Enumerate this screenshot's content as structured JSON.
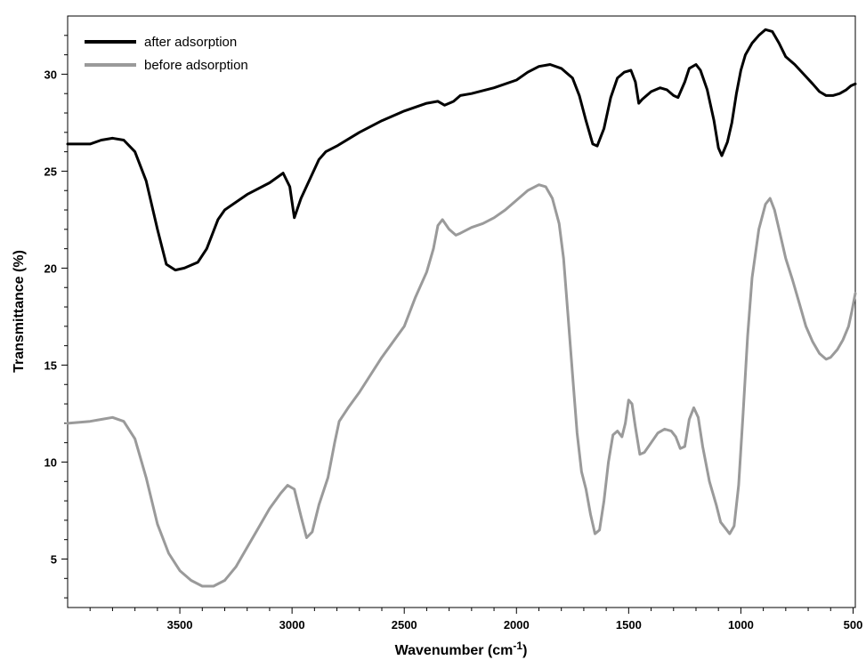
{
  "chart_data": {
    "type": "line",
    "title": "",
    "xlabel": "Wavenumber (cm",
    "xlabel_sup": "-1",
    "xlabel_close": ")",
    "ylabel": "Transmittance (%)",
    "xlim": [
      4000,
      490
    ],
    "ylim": [
      2.5,
      33
    ],
    "x_reversed": true,
    "x_ticks": [
      3500,
      3000,
      2500,
      2000,
      1500,
      1000,
      500
    ],
    "y_ticks": [
      5,
      10,
      15,
      20,
      25,
      30
    ],
    "grid": false,
    "legend_position": "top-left",
    "series": [
      {
        "name": "after adsorption",
        "color": "#000000",
        "points": [
          [
            4000,
            26.4
          ],
          [
            3900,
            26.4
          ],
          [
            3850,
            26.6
          ],
          [
            3800,
            26.7
          ],
          [
            3750,
            26.6
          ],
          [
            3700,
            26.0
          ],
          [
            3650,
            24.5
          ],
          [
            3600,
            22.0
          ],
          [
            3560,
            20.2
          ],
          [
            3520,
            19.9
          ],
          [
            3480,
            20.0
          ],
          [
            3420,
            20.3
          ],
          [
            3380,
            21.0
          ],
          [
            3330,
            22.5
          ],
          [
            3300,
            23.0
          ],
          [
            3200,
            23.8
          ],
          [
            3100,
            24.4
          ],
          [
            3040,
            24.9
          ],
          [
            3010,
            24.2
          ],
          [
            2990,
            22.6
          ],
          [
            2960,
            23.6
          ],
          [
            2920,
            24.6
          ],
          [
            2880,
            25.6
          ],
          [
            2850,
            26.0
          ],
          [
            2800,
            26.3
          ],
          [
            2700,
            27.0
          ],
          [
            2600,
            27.6
          ],
          [
            2500,
            28.1
          ],
          [
            2400,
            28.5
          ],
          [
            2350,
            28.6
          ],
          [
            2320,
            28.4
          ],
          [
            2280,
            28.6
          ],
          [
            2250,
            28.9
          ],
          [
            2200,
            29.0
          ],
          [
            2100,
            29.3
          ],
          [
            2000,
            29.7
          ],
          [
            1950,
            30.1
          ],
          [
            1900,
            30.4
          ],
          [
            1850,
            30.5
          ],
          [
            1800,
            30.3
          ],
          [
            1750,
            29.8
          ],
          [
            1720,
            28.9
          ],
          [
            1690,
            27.6
          ],
          [
            1660,
            26.4
          ],
          [
            1640,
            26.3
          ],
          [
            1610,
            27.2
          ],
          [
            1580,
            28.8
          ],
          [
            1550,
            29.8
          ],
          [
            1520,
            30.1
          ],
          [
            1490,
            30.2
          ],
          [
            1470,
            29.6
          ],
          [
            1455,
            28.5
          ],
          [
            1440,
            28.7
          ],
          [
            1400,
            29.1
          ],
          [
            1360,
            29.3
          ],
          [
            1330,
            29.2
          ],
          [
            1300,
            28.9
          ],
          [
            1280,
            28.8
          ],
          [
            1250,
            29.6
          ],
          [
            1230,
            30.3
          ],
          [
            1200,
            30.5
          ],
          [
            1180,
            30.2
          ],
          [
            1150,
            29.2
          ],
          [
            1120,
            27.6
          ],
          [
            1100,
            26.2
          ],
          [
            1085,
            25.8
          ],
          [
            1060,
            26.5
          ],
          [
            1040,
            27.5
          ],
          [
            1020,
            29.0
          ],
          [
            1000,
            30.2
          ],
          [
            980,
            31.0
          ],
          [
            950,
            31.6
          ],
          [
            920,
            32.0
          ],
          [
            890,
            32.3
          ],
          [
            860,
            32.2
          ],
          [
            830,
            31.6
          ],
          [
            800,
            30.9
          ],
          [
            760,
            30.5
          ],
          [
            720,
            30.0
          ],
          [
            680,
            29.5
          ],
          [
            650,
            29.1
          ],
          [
            620,
            28.9
          ],
          [
            590,
            28.9
          ],
          [
            560,
            29.0
          ],
          [
            530,
            29.2
          ],
          [
            510,
            29.4
          ],
          [
            490,
            29.5
          ]
        ]
      },
      {
        "name": "before adsorption",
        "color": "#9a9a9a",
        "points": [
          [
            4000,
            12.0
          ],
          [
            3900,
            12.1
          ],
          [
            3850,
            12.2
          ],
          [
            3800,
            12.3
          ],
          [
            3750,
            12.1
          ],
          [
            3700,
            11.2
          ],
          [
            3650,
            9.2
          ],
          [
            3600,
            6.8
          ],
          [
            3550,
            5.3
          ],
          [
            3500,
            4.4
          ],
          [
            3450,
            3.9
          ],
          [
            3400,
            3.6
          ],
          [
            3350,
            3.6
          ],
          [
            3300,
            3.9
          ],
          [
            3250,
            4.6
          ],
          [
            3200,
            5.6
          ],
          [
            3150,
            6.6
          ],
          [
            3100,
            7.6
          ],
          [
            3050,
            8.4
          ],
          [
            3020,
            8.8
          ],
          [
            2990,
            8.6
          ],
          [
            2960,
            7.2
          ],
          [
            2935,
            6.1
          ],
          [
            2910,
            6.4
          ],
          [
            2880,
            7.8
          ],
          [
            2840,
            9.2
          ],
          [
            2810,
            11.0
          ],
          [
            2790,
            12.1
          ],
          [
            2750,
            12.8
          ],
          [
            2700,
            13.6
          ],
          [
            2600,
            15.4
          ],
          [
            2500,
            17.0
          ],
          [
            2450,
            18.5
          ],
          [
            2400,
            19.8
          ],
          [
            2370,
            21.0
          ],
          [
            2350,
            22.2
          ],
          [
            2330,
            22.5
          ],
          [
            2300,
            22.0
          ],
          [
            2270,
            21.7
          ],
          [
            2250,
            21.8
          ],
          [
            2200,
            22.1
          ],
          [
            2150,
            22.3
          ],
          [
            2100,
            22.6
          ],
          [
            2050,
            23.0
          ],
          [
            2000,
            23.5
          ],
          [
            1950,
            24.0
          ],
          [
            1900,
            24.3
          ],
          [
            1870,
            24.2
          ],
          [
            1840,
            23.6
          ],
          [
            1810,
            22.3
          ],
          [
            1790,
            20.5
          ],
          [
            1770,
            17.5
          ],
          [
            1750,
            14.5
          ],
          [
            1730,
            11.5
          ],
          [
            1710,
            9.5
          ],
          [
            1690,
            8.6
          ],
          [
            1670,
            7.3
          ],
          [
            1650,
            6.3
          ],
          [
            1630,
            6.5
          ],
          [
            1610,
            8.0
          ],
          [
            1590,
            10.0
          ],
          [
            1570,
            11.4
          ],
          [
            1550,
            11.6
          ],
          [
            1530,
            11.3
          ],
          [
            1515,
            12.0
          ],
          [
            1500,
            13.2
          ],
          [
            1485,
            13.0
          ],
          [
            1470,
            11.8
          ],
          [
            1450,
            10.4
          ],
          [
            1430,
            10.5
          ],
          [
            1400,
            11.0
          ],
          [
            1370,
            11.5
          ],
          [
            1340,
            11.7
          ],
          [
            1310,
            11.6
          ],
          [
            1290,
            11.3
          ],
          [
            1270,
            10.7
          ],
          [
            1250,
            10.8
          ],
          [
            1230,
            12.2
          ],
          [
            1210,
            12.8
          ],
          [
            1190,
            12.3
          ],
          [
            1170,
            10.8
          ],
          [
            1140,
            9.0
          ],
          [
            1110,
            7.8
          ],
          [
            1090,
            6.9
          ],
          [
            1070,
            6.6
          ],
          [
            1050,
            6.3
          ],
          [
            1030,
            6.7
          ],
          [
            1010,
            8.8
          ],
          [
            990,
            12.5
          ],
          [
            970,
            16.5
          ],
          [
            950,
            19.5
          ],
          [
            920,
            22.0
          ],
          [
            890,
            23.3
          ],
          [
            870,
            23.6
          ],
          [
            850,
            23.0
          ],
          [
            830,
            22.0
          ],
          [
            800,
            20.5
          ],
          [
            770,
            19.4
          ],
          [
            740,
            18.2
          ],
          [
            710,
            17.0
          ],
          [
            680,
            16.2
          ],
          [
            650,
            15.6
          ],
          [
            620,
            15.3
          ],
          [
            600,
            15.4
          ],
          [
            570,
            15.8
          ],
          [
            545,
            16.3
          ],
          [
            520,
            17.0
          ],
          [
            505,
            17.8
          ],
          [
            490,
            18.7
          ]
        ]
      }
    ]
  }
}
